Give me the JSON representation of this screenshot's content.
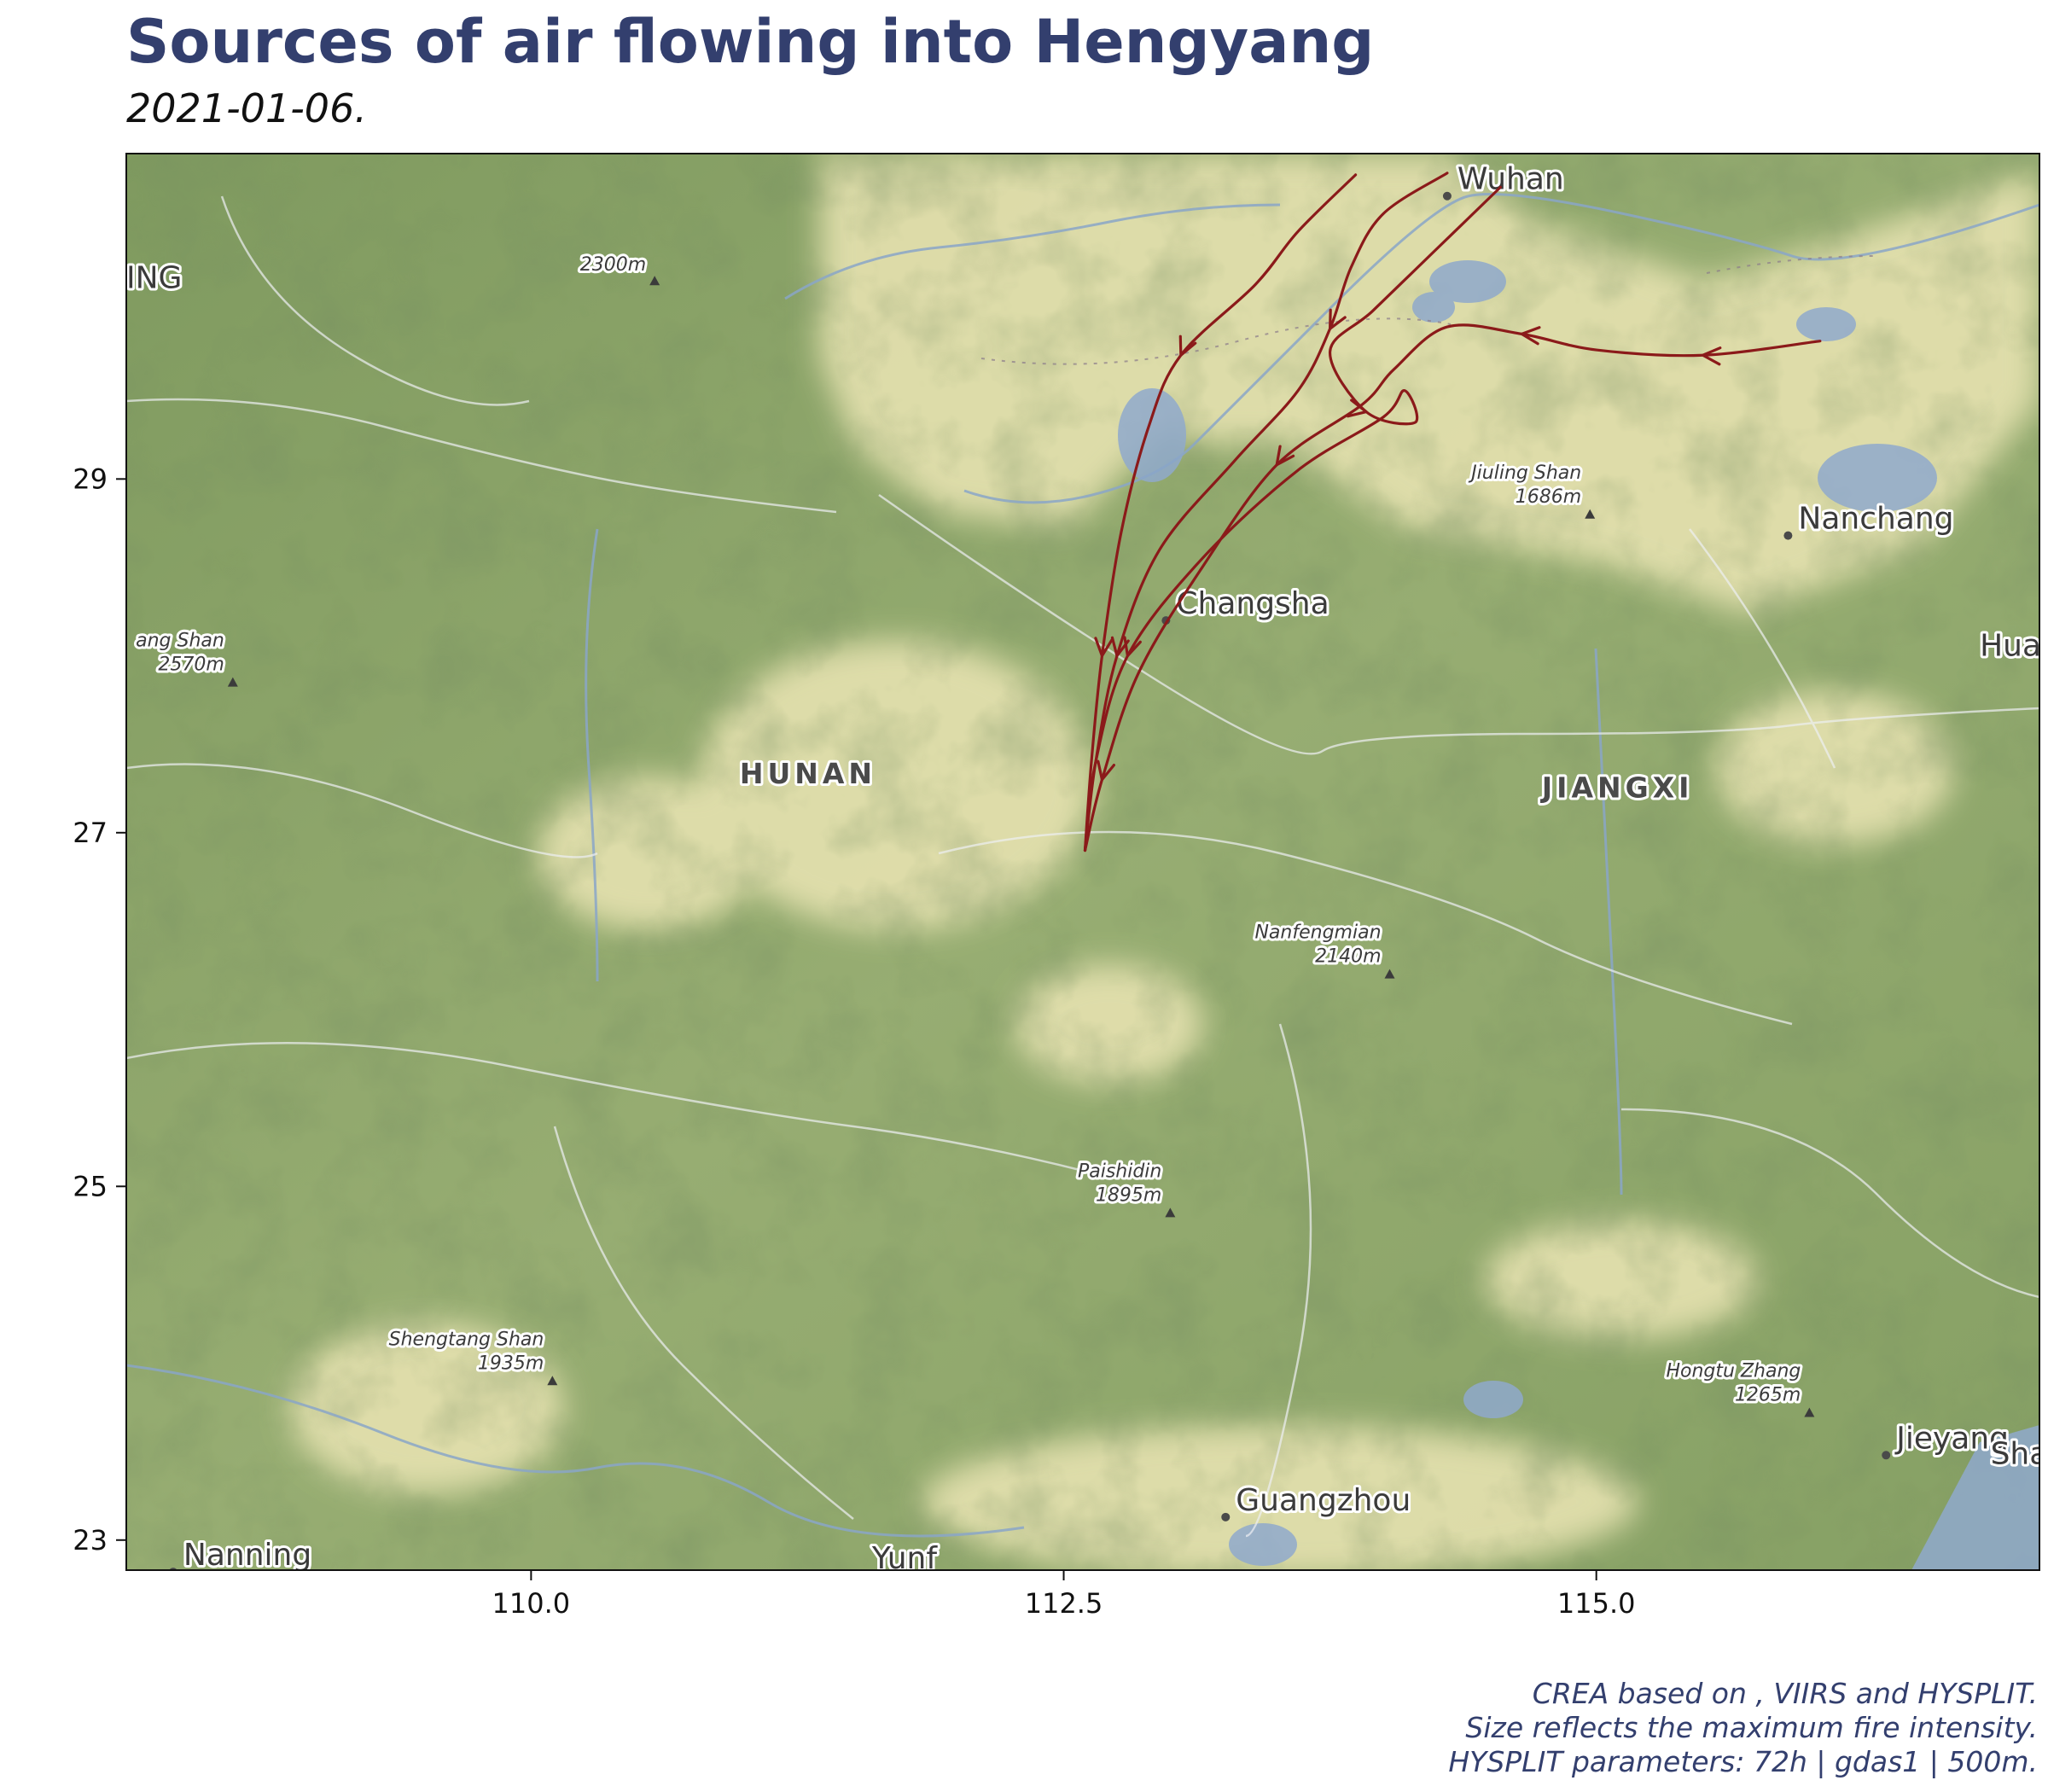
{
  "header": {
    "title": "Sources of air flowing into Hengyang",
    "subtitle": "2021-01-06."
  },
  "caption": {
    "line1": "CREA based on , VIIRS and HYSPLIT.",
    "line2": "Size reflects the maximum fire intensity.",
    "line3": "HYSPLIT parameters: 72h | gdas1 | 500m."
  },
  "map": {
    "extent": {
      "lon": [
        108.1,
        117.08
      ],
      "lat": [
        22.83,
        30.84
      ]
    },
    "x_ticks": [
      110.0,
      112.5,
      115.0
    ],
    "x_tick_labels": [
      "110.0",
      "112.5",
      "115.0"
    ],
    "y_ticks": [
      29,
      27,
      25,
      23
    ],
    "y_tick_labels": [
      "29",
      "27",
      "25",
      "23"
    ],
    "trajectory_color": "#8b1a1a",
    "receptor": {
      "lon": 112.6,
      "lat": 26.9
    },
    "cities": [
      {
        "name": "Wuhan",
        "lon": 114.3,
        "lat": 30.6
      },
      {
        "name": "Nanchang",
        "lon": 115.9,
        "lat": 28.68
      },
      {
        "name": "Changsha",
        "lon": 112.98,
        "lat": 28.2
      },
      {
        "name": "Guangzhou",
        "lon": 113.26,
        "lat": 23.13
      },
      {
        "name": "Jieyang",
        "lon": 116.36,
        "lat": 23.48
      },
      {
        "name": "Nanning",
        "lon": 108.32,
        "lat": 22.82
      }
    ],
    "partial_labels": [
      {
        "name": "ING",
        "lon": 108.1,
        "lat": 30.08
      },
      {
        "name": "Shan",
        "lon": 116.85,
        "lat": 23.43
      },
      {
        "name": "Huan",
        "lon": 116.8,
        "lat": 28.0
      },
      {
        "name": "Yunf",
        "lon": 111.6,
        "lat": 22.84
      }
    ],
    "regions": [
      {
        "name": "HUNAN",
        "lon": 111.3,
        "lat": 27.28
      },
      {
        "name": "JIANGXI",
        "lon": 115.1,
        "lat": 27.2
      }
    ],
    "peaks": [
      {
        "name": "2300m",
        "elev": "",
        "lon": 110.58,
        "lat": 30.12
      },
      {
        "name": "Jiuling Shan",
        "elev": "1686m",
        "lon": 114.97,
        "lat": 28.8
      },
      {
        "name": "ang Shan",
        "elev": "2570m",
        "lon": 108.6,
        "lat": 27.85
      },
      {
        "name": "Nanfengmian",
        "elev": "2140m",
        "lon": 114.03,
        "lat": 26.2
      },
      {
        "name": "Paishidin",
        "elev": "1895m",
        "lon": 113.0,
        "lat": 24.85
      },
      {
        "name": "Shengtang Shan",
        "elev": "1935m",
        "lon": 110.1,
        "lat": 23.9
      },
      {
        "name": "Hongtu Zhang",
        "elev": "1265m",
        "lon": 116.0,
        "lat": 23.72
      }
    ],
    "trajectories": [
      {
        "points": [
          [
            113.87,
            30.72
          ],
          [
            113.6,
            30.4
          ],
          [
            113.4,
            30.1
          ],
          [
            113.05,
            29.7
          ],
          [
            112.9,
            29.3
          ],
          [
            112.77,
            28.7
          ],
          [
            112.68,
            28.0
          ],
          [
            112.63,
            27.4
          ],
          [
            112.6,
            26.9
          ]
        ],
        "arrows_at": [
          3,
          6
        ]
      },
      {
        "points": [
          [
            114.3,
            30.73
          ],
          [
            114.0,
            30.5
          ],
          [
            113.85,
            30.2
          ],
          [
            113.75,
            29.85
          ],
          [
            113.6,
            29.5
          ],
          [
            113.3,
            29.1
          ],
          [
            112.95,
            28.6
          ],
          [
            112.75,
            28.0
          ],
          [
            112.65,
            27.4
          ],
          [
            112.6,
            26.9
          ]
        ],
        "arrows_at": [
          3,
          7
        ]
      },
      {
        "points": [
          [
            114.55,
            30.65
          ],
          [
            114.25,
            30.3
          ],
          [
            113.95,
            29.95
          ],
          [
            113.75,
            29.72
          ],
          [
            113.92,
            29.38
          ],
          [
            114.15,
            29.32
          ],
          [
            114.1,
            29.5
          ],
          [
            114.0,
            29.35
          ],
          [
            113.6,
            29.05
          ],
          [
            113.15,
            28.55
          ],
          [
            112.8,
            28.0
          ],
          [
            112.65,
            27.4
          ],
          [
            112.6,
            26.9
          ]
        ],
        "arrows_at": [
          4,
          10
        ]
      },
      {
        "points": [
          [
            116.05,
            29.78
          ],
          [
            115.5,
            29.7
          ],
          [
            115.0,
            29.73
          ],
          [
            114.65,
            29.82
          ],
          [
            114.3,
            29.86
          ],
          [
            114.05,
            29.62
          ],
          [
            113.9,
            29.42
          ],
          [
            113.5,
            29.08
          ],
          [
            113.15,
            28.5
          ],
          [
            112.85,
            27.9
          ],
          [
            112.68,
            27.3
          ],
          [
            112.6,
            26.9
          ]
        ],
        "arrows_at": [
          1,
          3,
          7,
          10
        ]
      }
    ]
  }
}
